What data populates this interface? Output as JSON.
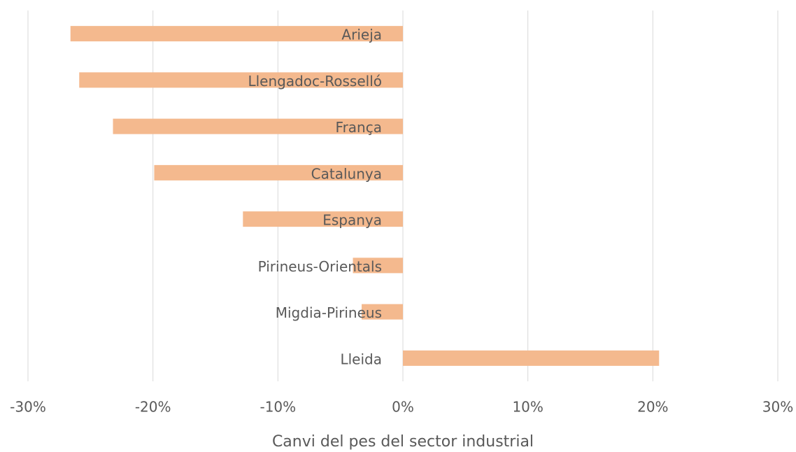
{
  "chart_data": {
    "type": "bar",
    "orientation": "horizontal",
    "categories": [
      "Arieja",
      "Llengadoc-Rosselló",
      "França",
      "Catalunya",
      "Espanya",
      "Pirineus-Orientals",
      "Migdia-Pirineus",
      "Lleida"
    ],
    "values": [
      -26.6,
      -25.9,
      -23.2,
      -19.9,
      -12.8,
      -4.0,
      -3.3,
      20.5
    ],
    "color": "#f4b98e",
    "x_label": "Canvi del pes del sector industrial",
    "xlim": [
      -30,
      30
    ],
    "xticks": [
      {
        "value": -30,
        "label": "-30%"
      },
      {
        "value": -20,
        "label": "-20%"
      },
      {
        "value": -10,
        "label": "-10%"
      },
      {
        "value": 0,
        "label": "0%"
      },
      {
        "value": 10,
        "label": "10%"
      },
      {
        "value": 20,
        "label": "20%"
      },
      {
        "value": 30,
        "label": "30%"
      }
    ],
    "grid": true
  }
}
